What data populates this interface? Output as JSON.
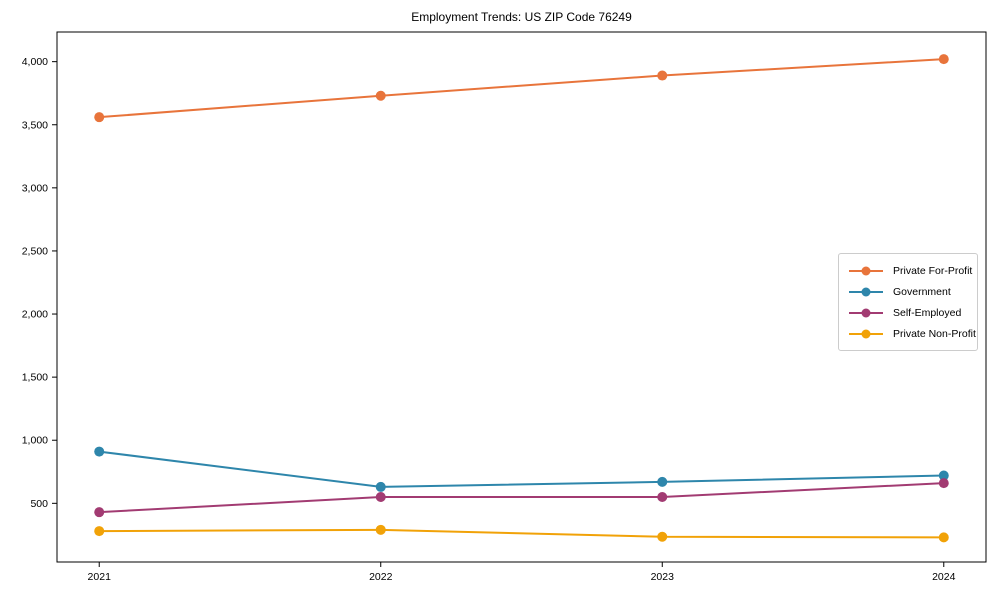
{
  "chart_data": {
    "type": "line",
    "title": "Employment Trends: US ZIP Code 76249",
    "x": [
      2021,
      2022,
      2023,
      2024
    ],
    "x_tick_labels": [
      "2021",
      "2022",
      "2023",
      "2024"
    ],
    "y_ticks": [
      500,
      1000,
      1500,
      2000,
      2500,
      3000,
      3500,
      4000
    ],
    "y_tick_labels": [
      "500",
      "1,000",
      "1,500",
      "2,000",
      "2,500",
      "3,000",
      "3,500",
      "4,000"
    ],
    "xlim": [
      2020.85,
      2024.15
    ],
    "ylim": [
      35,
      4235
    ],
    "grid": false,
    "legend_position": "center-right",
    "xlabel": "",
    "ylabel": "",
    "series": [
      {
        "name": "Private For-Profit",
        "color": "#E8743B",
        "values": [
          3560,
          3730,
          3890,
          4020
        ]
      },
      {
        "name": "Government",
        "color": "#2E86AB",
        "values": [
          910,
          630,
          670,
          720
        ]
      },
      {
        "name": "Self-Employed",
        "color": "#A23B72",
        "values": [
          430,
          550,
          550,
          660
        ]
      },
      {
        "name": "Private Non-Profit",
        "color": "#F1A208",
        "values": [
          280,
          290,
          235,
          230
        ]
      }
    ]
  }
}
